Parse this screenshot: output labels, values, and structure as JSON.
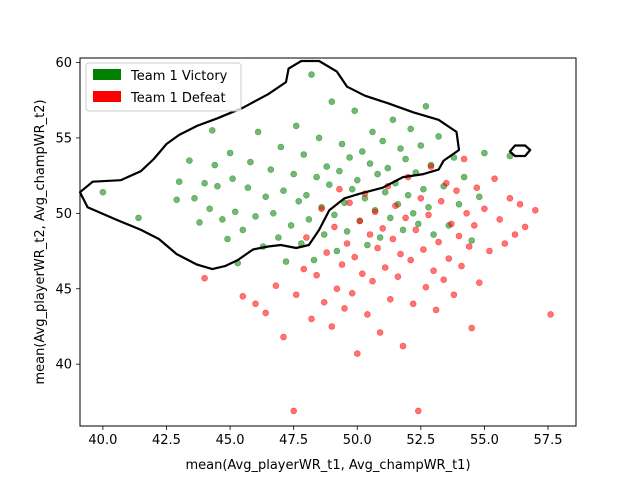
{
  "chart_data": {
    "type": "scatter",
    "title": "",
    "xlabel": "mean(Avg_playerWR_t1, Avg_champWR_t1)",
    "ylabel": "mean(Avg_playerWR_t2, Avg_champWR_t2)",
    "xlim": [
      39.1,
      58.6
    ],
    "ylim": [
      35.9,
      60.3
    ],
    "xticks": [
      40.0,
      42.5,
      45.0,
      47.5,
      50.0,
      52.5,
      55.0,
      57.5
    ],
    "xtick_labels": [
      "40.0",
      "42.5",
      "45.0",
      "47.5",
      "50.0",
      "52.5",
      "55.0",
      "57.5"
    ],
    "yticks": [
      40,
      45,
      50,
      55,
      60
    ],
    "ytick_labels": [
      "40",
      "45",
      "50",
      "55",
      "60"
    ],
    "grid": false,
    "legend": {
      "placement": "top-left",
      "entries": [
        {
          "label": "Team 1 Victory",
          "color": "#008000"
        },
        {
          "label": "Team 1 Defeat",
          "color": "#ff0000"
        }
      ]
    },
    "series": [
      {
        "name": "Team 1 Victory",
        "color": "#008000",
        "points": [
          [
            40.0,
            51.4
          ],
          [
            41.4,
            49.7
          ],
          [
            42.9,
            50.9
          ],
          [
            43.0,
            52.1
          ],
          [
            43.4,
            53.5
          ],
          [
            43.6,
            51.0
          ],
          [
            43.8,
            49.4
          ],
          [
            44.0,
            52.0
          ],
          [
            44.2,
            50.3
          ],
          [
            44.3,
            55.5
          ],
          [
            44.4,
            53.2
          ],
          [
            44.5,
            51.8
          ],
          [
            44.7,
            49.6
          ],
          [
            44.9,
            48.3
          ],
          [
            45.0,
            54.0
          ],
          [
            45.1,
            52.3
          ],
          [
            45.2,
            50.1
          ],
          [
            45.3,
            46.7
          ],
          [
            45.5,
            48.9
          ],
          [
            45.7,
            51.7
          ],
          [
            45.8,
            53.4
          ],
          [
            46.0,
            49.8
          ],
          [
            46.1,
            55.4
          ],
          [
            46.3,
            47.8
          ],
          [
            46.4,
            51.1
          ],
          [
            46.6,
            52.9
          ],
          [
            46.7,
            50.0
          ],
          [
            46.9,
            48.4
          ],
          [
            47.0,
            54.4
          ],
          [
            47.1,
            51.5
          ],
          [
            47.2,
            46.8
          ],
          [
            47.4,
            49.2
          ],
          [
            47.5,
            52.6
          ],
          [
            47.6,
            55.8
          ],
          [
            47.7,
            50.8
          ],
          [
            47.8,
            48.0
          ],
          [
            47.9,
            53.9
          ],
          [
            48.0,
            51.2
          ],
          [
            48.1,
            49.6
          ],
          [
            48.2,
            59.2
          ],
          [
            48.3,
            46.9
          ],
          [
            48.4,
            52.4
          ],
          [
            48.5,
            55.0
          ],
          [
            48.6,
            50.4
          ],
          [
            48.7,
            48.6
          ],
          [
            48.8,
            53.1
          ],
          [
            48.9,
            51.9
          ],
          [
            49.0,
            57.4
          ],
          [
            49.1,
            49.9
          ],
          [
            49.2,
            47.5
          ],
          [
            49.3,
            52.8
          ],
          [
            49.4,
            54.6
          ],
          [
            49.5,
            50.7
          ],
          [
            49.6,
            48.8
          ],
          [
            49.7,
            53.7
          ],
          [
            49.8,
            51.6
          ],
          [
            49.9,
            56.8
          ],
          [
            50.0,
            52.2
          ],
          [
            50.1,
            49.5
          ],
          [
            50.2,
            54.1
          ],
          [
            50.3,
            51.0
          ],
          [
            50.4,
            47.9
          ],
          [
            50.5,
            53.3
          ],
          [
            50.6,
            55.4
          ],
          [
            50.7,
            50.2
          ],
          [
            50.8,
            52.6
          ],
          [
            50.9,
            48.4
          ],
          [
            51.0,
            54.8
          ],
          [
            51.1,
            51.4
          ],
          [
            51.2,
            53.0
          ],
          [
            51.3,
            49.7
          ],
          [
            51.4,
            56.2
          ],
          [
            51.5,
            52.0
          ],
          [
            51.6,
            50.6
          ],
          [
            51.7,
            54.3
          ],
          [
            51.8,
            48.9
          ],
          [
            51.9,
            53.6
          ],
          [
            52.0,
            51.2
          ],
          [
            52.1,
            55.6
          ],
          [
            52.2,
            50.0
          ],
          [
            52.3,
            52.7
          ],
          [
            52.4,
            49.3
          ],
          [
            52.5,
            54.5
          ],
          [
            52.6,
            51.6
          ],
          [
            52.7,
            57.1
          ],
          [
            52.8,
            50.4
          ],
          [
            52.9,
            53.2
          ],
          [
            53.0,
            48.6
          ],
          [
            53.2,
            55.1
          ],
          [
            53.4,
            51.8
          ],
          [
            53.6,
            49.2
          ],
          [
            53.8,
            53.7
          ],
          [
            54.0,
            50.6
          ],
          [
            54.2,
            52.4
          ],
          [
            54.5,
            48.2
          ],
          [
            54.8,
            51.1
          ],
          [
            55.0,
            54.0
          ],
          [
            56.0,
            53.8
          ]
        ]
      },
      {
        "name": "Team 1 Defeat",
        "color": "#ff0000",
        "points": [
          [
            44.0,
            45.7
          ],
          [
            45.5,
            44.5
          ],
          [
            46.0,
            44.0
          ],
          [
            46.4,
            43.4
          ],
          [
            46.8,
            45.2
          ],
          [
            47.1,
            41.8
          ],
          [
            47.5,
            36.9
          ],
          [
            47.6,
            44.6
          ],
          [
            47.9,
            46.3
          ],
          [
            48.0,
            48.4
          ],
          [
            48.2,
            43.0
          ],
          [
            48.4,
            45.9
          ],
          [
            48.6,
            50.3
          ],
          [
            48.7,
            44.1
          ],
          [
            48.8,
            47.4
          ],
          [
            49.0,
            42.5
          ],
          [
            49.1,
            49.1
          ],
          [
            49.2,
            45.0
          ],
          [
            49.3,
            51.6
          ],
          [
            49.4,
            46.6
          ],
          [
            49.5,
            43.7
          ],
          [
            49.6,
            48.0
          ],
          [
            49.7,
            50.7
          ],
          [
            49.8,
            44.7
          ],
          [
            49.9,
            47.1
          ],
          [
            50.0,
            40.7
          ],
          [
            50.1,
            49.5
          ],
          [
            50.2,
            46.0
          ],
          [
            50.3,
            51.3
          ],
          [
            50.4,
            43.3
          ],
          [
            50.5,
            48.6
          ],
          [
            50.6,
            45.5
          ],
          [
            50.7,
            50.1
          ],
          [
            50.8,
            47.7
          ],
          [
            50.9,
            42.1
          ],
          [
            51.0,
            49.0
          ],
          [
            51.1,
            46.4
          ],
          [
            51.2,
            51.8
          ],
          [
            51.3,
            44.3
          ],
          [
            51.4,
            48.3
          ],
          [
            51.5,
            50.5
          ],
          [
            51.6,
            45.8
          ],
          [
            51.7,
            47.3
          ],
          [
            51.8,
            41.2
          ],
          [
            51.9,
            49.7
          ],
          [
            52.0,
            52.4
          ],
          [
            52.1,
            46.9
          ],
          [
            52.2,
            44.0
          ],
          [
            52.3,
            48.9
          ],
          [
            52.4,
            36.9
          ],
          [
            52.5,
            51.0
          ],
          [
            52.6,
            47.6
          ],
          [
            52.7,
            45.1
          ],
          [
            52.8,
            49.9
          ],
          [
            52.9,
            53.1
          ],
          [
            53.0,
            46.2
          ],
          [
            53.1,
            43.6
          ],
          [
            53.2,
            48.1
          ],
          [
            53.3,
            50.8
          ],
          [
            53.4,
            45.6
          ],
          [
            53.5,
            52.0
          ],
          [
            53.6,
            47.0
          ],
          [
            53.7,
            49.3
          ],
          [
            53.8,
            44.6
          ],
          [
            53.9,
            51.5
          ],
          [
            54.0,
            48.5
          ],
          [
            54.1,
            46.5
          ],
          [
            54.2,
            53.6
          ],
          [
            54.3,
            50.0
          ],
          [
            54.4,
            47.8
          ],
          [
            54.5,
            42.4
          ],
          [
            54.6,
            49.2
          ],
          [
            54.7,
            51.7
          ],
          [
            54.8,
            45.4
          ],
          [
            55.0,
            50.3
          ],
          [
            55.2,
            47.5
          ],
          [
            55.4,
            52.3
          ],
          [
            55.6,
            49.6
          ],
          [
            55.8,
            48.0
          ],
          [
            56.0,
            51.0
          ],
          [
            56.2,
            48.6
          ],
          [
            56.4,
            50.6
          ],
          [
            56.6,
            49.1
          ],
          [
            57.0,
            50.2
          ],
          [
            57.6,
            43.3
          ]
        ]
      }
    ],
    "contour": {
      "label": "",
      "color": "#000000",
      "paths": [
        [
          [
            39.1,
            51.4
          ],
          [
            39.6,
            52.1
          ],
          [
            40.7,
            52.2
          ],
          [
            41.5,
            52.8
          ],
          [
            42.0,
            53.6
          ],
          [
            42.5,
            54.6
          ],
          [
            43.0,
            55.2
          ],
          [
            43.7,
            55.8
          ],
          [
            44.5,
            56.3
          ],
          [
            45.5,
            57.0
          ],
          [
            46.5,
            57.9
          ],
          [
            47.2,
            58.7
          ],
          [
            47.3,
            59.6
          ],
          [
            47.8,
            60.1
          ],
          [
            48.5,
            60.1
          ],
          [
            49.2,
            59.4
          ],
          [
            49.6,
            58.4
          ],
          [
            50.3,
            57.8
          ],
          [
            51.2,
            57.3
          ],
          [
            52.2,
            56.7
          ],
          [
            53.2,
            56.2
          ],
          [
            53.9,
            55.4
          ],
          [
            54.0,
            54.2
          ],
          [
            53.4,
            53.5
          ],
          [
            53.2,
            52.9
          ],
          [
            52.6,
            52.6
          ],
          [
            51.8,
            52.4
          ],
          [
            51.0,
            51.7
          ],
          [
            50.1,
            51.3
          ],
          [
            49.5,
            51.0
          ],
          [
            48.9,
            50.2
          ],
          [
            48.5,
            48.9
          ],
          [
            48.1,
            47.9
          ],
          [
            47.6,
            47.7
          ],
          [
            47.0,
            47.9
          ],
          [
            46.5,
            47.8
          ],
          [
            45.9,
            47.6
          ],
          [
            45.3,
            46.9
          ],
          [
            44.8,
            46.5
          ],
          [
            44.3,
            46.3
          ],
          [
            43.7,
            46.6
          ],
          [
            42.9,
            47.3
          ],
          [
            42.2,
            48.3
          ],
          [
            41.5,
            48.9
          ],
          [
            40.5,
            49.6
          ],
          [
            39.4,
            50.4
          ],
          [
            39.1,
            51.4
          ]
        ],
        [
          [
            56.0,
            54.1
          ],
          [
            56.2,
            54.5
          ],
          [
            56.6,
            54.5
          ],
          [
            56.8,
            54.2
          ],
          [
            56.6,
            53.8
          ],
          [
            56.2,
            53.8
          ],
          [
            56.0,
            54.1
          ]
        ]
      ]
    }
  }
}
